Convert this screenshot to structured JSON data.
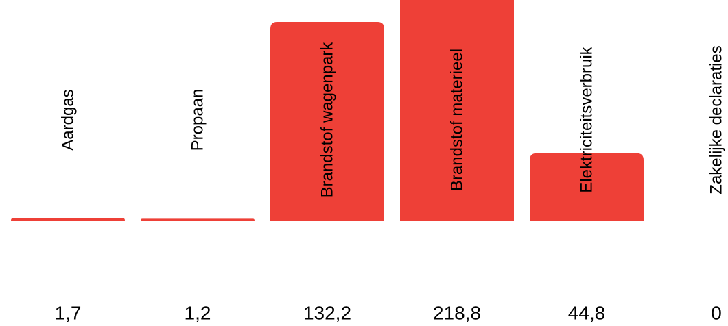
{
  "chart_data": {
    "type": "bar",
    "categories": [
      "Aardgas",
      "Propaan",
      "Brandstof wagenpark",
      "Brandstof materieel",
      "Elektriciteitsverbruik",
      "Zakelijke declaraties"
    ],
    "values": [
      1.7,
      1.2,
      132.2,
      218.8,
      44.8,
      0
    ],
    "value_labels": [
      "1,7",
      "1,2",
      "132,2",
      "218,8",
      "44,8",
      "0"
    ],
    "ylim": [
      0,
      150
    ],
    "grid": false,
    "legend": "none",
    "bar_color": "#ee4037",
    "text_color": "#000000"
  }
}
